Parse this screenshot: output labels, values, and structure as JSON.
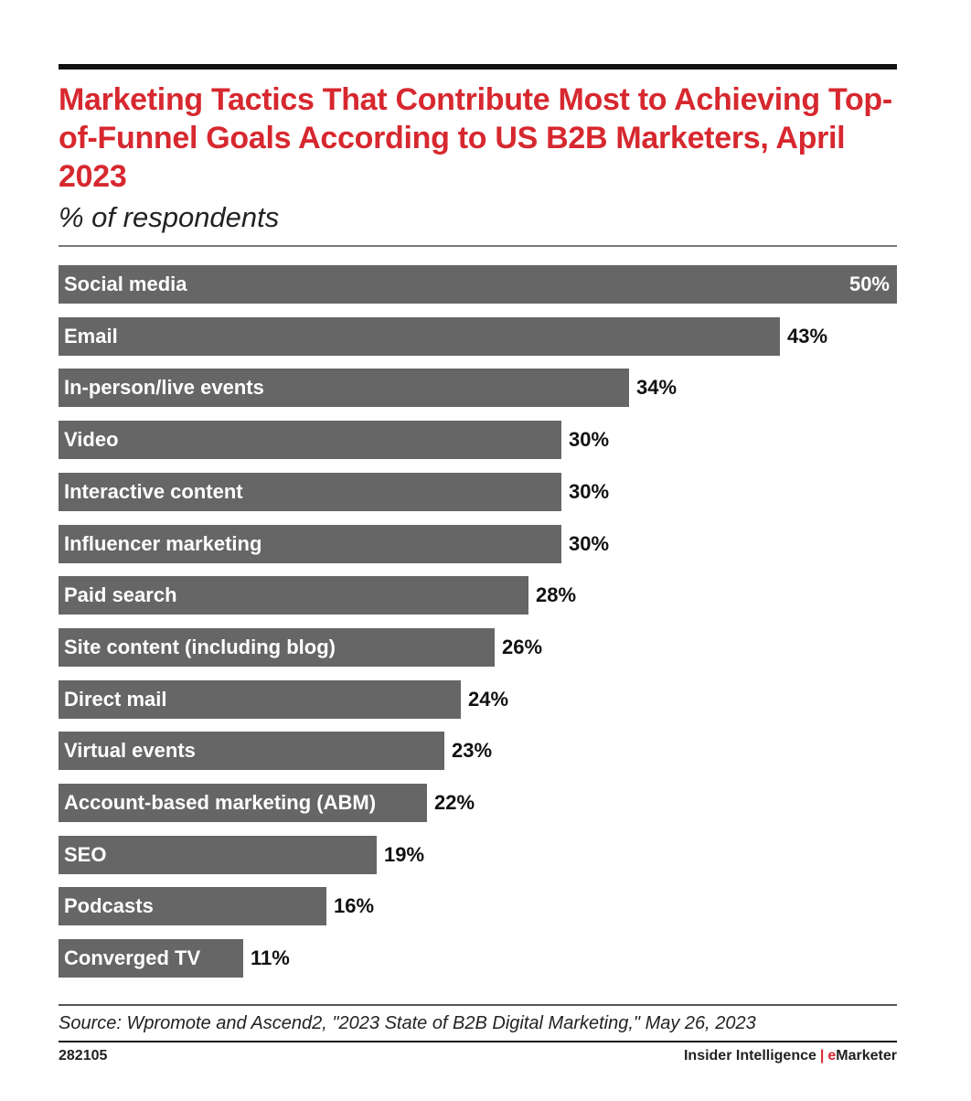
{
  "header": {
    "title": "Marketing Tactics That Contribute Most to Achieving Top-of-Funnel Goals According to US B2B Marketers, April 2023",
    "subtitle": "% of respondents"
  },
  "chart_data": {
    "type": "bar",
    "orientation": "horizontal",
    "title": "Marketing Tactics That Contribute Most to Achieving Top-of-Funnel Goals According to US B2B Marketers, April 2023",
    "subtitle": "% of respondents",
    "categories": [
      "Social media",
      "Email",
      "In-person/live events",
      "Video",
      "Interactive content",
      "Influencer marketing",
      "Paid search",
      "Site content (including blog)",
      "Direct mail",
      "Virtual events",
      "Account-based marketing (ABM)",
      "SEO",
      "Podcasts",
      "Converged TV"
    ],
    "values": [
      50,
      43,
      34,
      30,
      30,
      30,
      28,
      26,
      24,
      23,
      22,
      19,
      16,
      11
    ],
    "value_labels": [
      "50%",
      "43%",
      "34%",
      "30%",
      "30%",
      "30%",
      "28%",
      "26%",
      "24%",
      "23%",
      "22%",
      "19%",
      "16%",
      "11%"
    ],
    "xlim": [
      0,
      50
    ],
    "unit": "%",
    "bar_color": "#666666",
    "grid": false,
    "legend": "none"
  },
  "footer": {
    "source": "Source: Wpromote and Ascend2, \"2023 State of B2B Digital Marketing,\" May 26, 2023",
    "chart_id": "282105",
    "brand_left": "Insider Intelligence",
    "brand_sep": "|",
    "brand_e": "e",
    "brand_right": "Marketer"
  },
  "colors": {
    "title": "#d7282f",
    "bar": "#666666",
    "accent": "#d7282f"
  }
}
